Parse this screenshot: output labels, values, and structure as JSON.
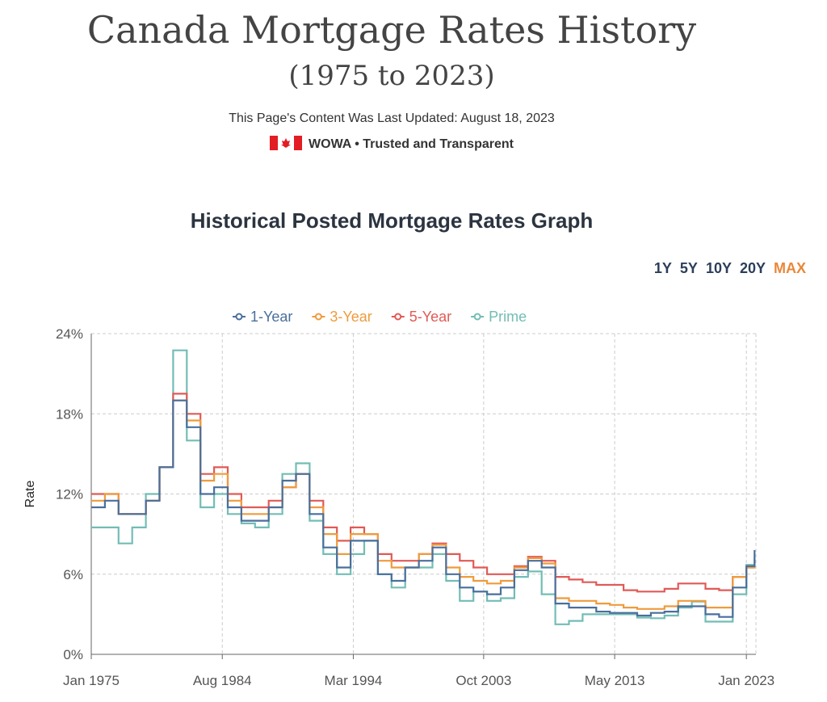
{
  "header": {
    "title": "Canada Mortgage Rates History",
    "subtitle": "(1975 to 2023)",
    "updated": "This Page's Content Was Last Updated: August 18, 2023",
    "brand": "WOWA • Trusted and Transparent"
  },
  "graph_title": "Historical Posted Mortgage Rates Graph",
  "ranges": [
    "1Y",
    "5Y",
    "10Y",
    "20Y",
    "MAX"
  ],
  "active_range": "MAX",
  "chart_data": {
    "type": "line",
    "title": "Historical Posted Mortgage Rates Graph",
    "ylabel": "Rate",
    "xlabel": "",
    "ylim": [
      0,
      24
    ],
    "xlim": [
      1975,
      2023.7
    ],
    "yticks": [
      "0%",
      "6%",
      "12%",
      "18%",
      "24%"
    ],
    "xticks": [
      {
        "label": "Jan 1975",
        "v": 1975
      },
      {
        "label": "Aug 1984",
        "v": 1984.6
      },
      {
        "label": "Mar 1994",
        "v": 1994.2
      },
      {
        "label": "Oct 2003",
        "v": 2003.75
      },
      {
        "label": "May 2013",
        "v": 2013.35
      },
      {
        "label": "Jan 2023",
        "v": 2023
      }
    ],
    "legend_position": "top",
    "x": [
      1975,
      1976,
      1977,
      1978,
      1979,
      1980,
      1981,
      1982,
      1983,
      1984,
      1985,
      1986,
      1987,
      1988,
      1989,
      1990,
      1991,
      1992,
      1993,
      1994,
      1995,
      1996,
      1997,
      1998,
      1999,
      2000,
      2001,
      2002,
      2003,
      2004,
      2005,
      2006,
      2007,
      2008,
      2009,
      2010,
      2011,
      2012,
      2013,
      2014,
      2015,
      2016,
      2017,
      2018,
      2019,
      2020,
      2021,
      2022,
      2023,
      2023.6
    ],
    "series": [
      {
        "name": "1-Year",
        "color": "#4a6f9c",
        "values": [
          11,
          11.5,
          10.5,
          10.5,
          11.5,
          14,
          19,
          17,
          12,
          12.5,
          11,
          10,
          10,
          11,
          13,
          13.5,
          10.5,
          8,
          6.5,
          8.5,
          8.5,
          6,
          5.5,
          6.5,
          7,
          8,
          6,
          5,
          4.7,
          4.5,
          5,
          6.3,
          7,
          6.5,
          3.8,
          3.5,
          3.5,
          3.2,
          3.1,
          3.1,
          2.9,
          3.1,
          3.2,
          3.6,
          3.6,
          3,
          2.8,
          5,
          6.6,
          7.8
        ]
      },
      {
        "name": "3-Year",
        "color": "#ef9b3c",
        "values": [
          11.5,
          12,
          10.5,
          10.5,
          11.5,
          14,
          19,
          17.5,
          13,
          13.5,
          11.5,
          10.5,
          10.5,
          11,
          12.5,
          13.5,
          11,
          9,
          7.5,
          9,
          9,
          7,
          6.5,
          6.5,
          7.5,
          8.2,
          6.5,
          5.8,
          5.5,
          5.3,
          5.5,
          6.5,
          7.2,
          6.8,
          4.2,
          4,
          4,
          3.8,
          3.7,
          3.5,
          3.4,
          3.4,
          3.6,
          4,
          4,
          3.5,
          3.5,
          5.8,
          6.5,
          6.6
        ]
      },
      {
        "name": "5-Year",
        "color": "#e05a56",
        "values": [
          12,
          12,
          10.5,
          10.5,
          11.5,
          14,
          19.5,
          18,
          13.5,
          14,
          12,
          11,
          11,
          11.5,
          12.5,
          13.5,
          11.5,
          9.5,
          8.5,
          9.5,
          9,
          7.5,
          7,
          7,
          7.5,
          8.3,
          7.5,
          7,
          6.5,
          6,
          6,
          6.6,
          7.3,
          7,
          5.8,
          5.6,
          5.4,
          5.2,
          5.2,
          4.8,
          4.7,
          4.7,
          4.9,
          5.3,
          5.3,
          4.9,
          4.8,
          5.8,
          6.5,
          6.5
        ]
      },
      {
        "name": "Prime",
        "color": "#72bdb5",
        "values": [
          9.5,
          9.5,
          8.3,
          9.5,
          12,
          14,
          22.75,
          16,
          11,
          12,
          10.5,
          9.8,
          9.5,
          10.5,
          13.5,
          14.3,
          10,
          7.5,
          6,
          7.5,
          8.5,
          6,
          5,
          6.5,
          6.5,
          7.5,
          5.5,
          4,
          4.7,
          4,
          4.2,
          5.8,
          6.2,
          4.5,
          2.25,
          2.5,
          3,
          3,
          3,
          3,
          2.75,
          2.7,
          2.9,
          3.5,
          3.95,
          2.45,
          2.45,
          4.5,
          6.7,
          7.2
        ]
      }
    ]
  }
}
